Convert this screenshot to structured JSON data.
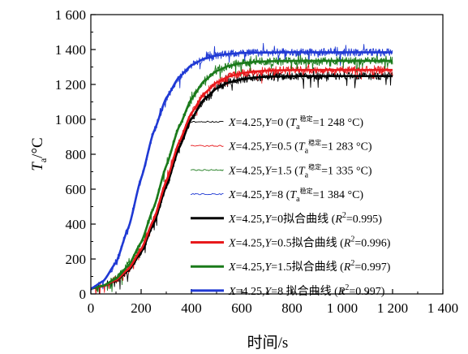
{
  "chart_data": {
    "type": "line",
    "xlabel": "时间/s",
    "ylabel": {
      "main": "T",
      "sub": "a",
      "unit": "/°C"
    },
    "xlim": [
      0,
      1400
    ],
    "ylim": [
      0,
      1600
    ],
    "xticks": [
      0,
      200,
      400,
      600,
      800,
      1000,
      1200,
      1400
    ],
    "xtick_labels": [
      "0",
      "200",
      "400",
      "600",
      "800",
      "1 000",
      "1 200",
      "1 400"
    ],
    "yticks": [
      0,
      200,
      400,
      600,
      800,
      1000,
      1200,
      1400,
      1600
    ],
    "ytick_labels": [
      "0",
      "200",
      "400",
      "600",
      "800",
      "1 000",
      "1 200",
      "1 400",
      "1 600"
    ],
    "grid": false,
    "legend_placement": "center-right",
    "x": [
      0,
      50,
      100,
      150,
      200,
      250,
      300,
      350,
      400,
      450,
      500,
      550,
      600,
      650,
      700,
      750,
      800,
      850,
      900,
      950,
      1000,
      1050,
      1100,
      1150,
      1200
    ],
    "series": [
      {
        "name": "X=4.25,Y=0 (Ta稳定=1 248 °C)",
        "label": {
          "pre": "X=4.25,Y=0 (",
          "mid": "=1 248 °C)"
        },
        "kind": "measured",
        "color": "#000000",
        "values": [
          30,
          45,
          76,
          135,
          239,
          403,
          617,
          834,
          1004,
          1114,
          1177,
          1212,
          1230,
          1239,
          1244,
          1246,
          1247,
          1248,
          1248,
          1248,
          1248,
          1248,
          1248,
          1248,
          1248
        ]
      },
      {
        "name": "X=4.25,Y=0.5 (Ta稳定=1 283 °C)",
        "label": {
          "pre": "X=4.25,Y=0.5 (",
          "mid": "=1 283 °C)"
        },
        "kind": "measured",
        "color": "#e8191c",
        "values": [
          30,
          46,
          79,
          143,
          254,
          426,
          646,
          866,
          1036,
          1147,
          1211,
          1246,
          1265,
          1274,
          1279,
          1281,
          1282,
          1283,
          1283,
          1283,
          1283,
          1283,
          1283,
          1283,
          1283
        ]
      },
      {
        "name": "X=4.25,Y=1.5 (Ta稳定=1 335 °C)",
        "label": {
          "pre": "X=4.25,Y=1.5 (",
          "mid": "=1 335 °C)"
        },
        "kind": "measured",
        "color": "#1a7a1a",
        "values": [
          30,
          48,
          87,
          163,
          295,
          494,
          734,
          955,
          1117,
          1220,
          1277,
          1307,
          1322,
          1329,
          1332,
          1334,
          1335,
          1335,
          1335,
          1335,
          1335,
          1335,
          1335,
          1335,
          1335
        ]
      },
      {
        "name": "X=4.25,Y=8 (Ta稳定=1 384 °C)",
        "label": {
          "pre": "X=4.25,Y=8 (",
          "mid": "=1 384 °C)"
        },
        "kind": "measured",
        "color": "#1f39d4",
        "values": [
          30,
          74,
          179,
          381,
          662,
          929,
          1123,
          1241,
          1310,
          1347,
          1366,
          1375,
          1380,
          1382,
          1383,
          1384,
          1384,
          1384,
          1384,
          1384,
          1384,
          1384,
          1384,
          1384,
          1384
        ]
      },
      {
        "name": "X=4.25,Y=0拟合曲线 (R2=0.995)",
        "label": {
          "pre": "X=4.25,Y=0拟合曲线 (",
          "mid": "=0.995)"
        },
        "kind": "fit",
        "color": "#000000",
        "values": [
          30,
          45,
          76,
          135,
          239,
          403,
          617,
          834,
          1004,
          1114,
          1177,
          1212,
          1230,
          1239,
          1244,
          1246,
          1247,
          1248,
          1248,
          1248,
          1248,
          1248,
          1248,
          1248,
          1248
        ]
      },
      {
        "name": "X=4.25,Y=0.5拟合曲线 (R2=0.996)",
        "label": {
          "pre": "X=4.25,Y=0.5拟合曲线 (",
          "mid": "=0.996)"
        },
        "kind": "fit",
        "color": "#e8191c",
        "values": [
          30,
          46,
          79,
          143,
          254,
          426,
          646,
          866,
          1036,
          1147,
          1211,
          1246,
          1265,
          1274,
          1279,
          1281,
          1282,
          1283,
          1283,
          1283,
          1283,
          1283,
          1283,
          1283,
          1283
        ]
      },
      {
        "name": "X=4.25,Y=1.5拟合曲线 (R2=0.997)",
        "label": {
          "pre": "X=4.25,Y=1.5拟合曲线 (",
          "mid": "=0.997)"
        },
        "kind": "fit",
        "color": "#1a7a1a",
        "values": [
          30,
          48,
          87,
          163,
          295,
          494,
          734,
          955,
          1117,
          1220,
          1277,
          1307,
          1322,
          1329,
          1332,
          1334,
          1335,
          1335,
          1335,
          1335,
          1335,
          1335,
          1335,
          1335,
          1335
        ]
      },
      {
        "name": "X=4.25,Y=8 拟合曲线 (R2=0.997)",
        "label": {
          "pre": "X=4.25,Y=8 拟合曲线 (",
          "mid": "=0.997)"
        },
        "kind": "fit",
        "color": "#1f39d4",
        "values": [
          30,
          74,
          179,
          381,
          662,
          929,
          1123,
          1241,
          1310,
          1347,
          1366,
          1375,
          1380,
          1382,
          1383,
          1384,
          1384,
          1384,
          1384,
          1384,
          1384,
          1384,
          1384,
          1384,
          1384
        ]
      }
    ]
  }
}
